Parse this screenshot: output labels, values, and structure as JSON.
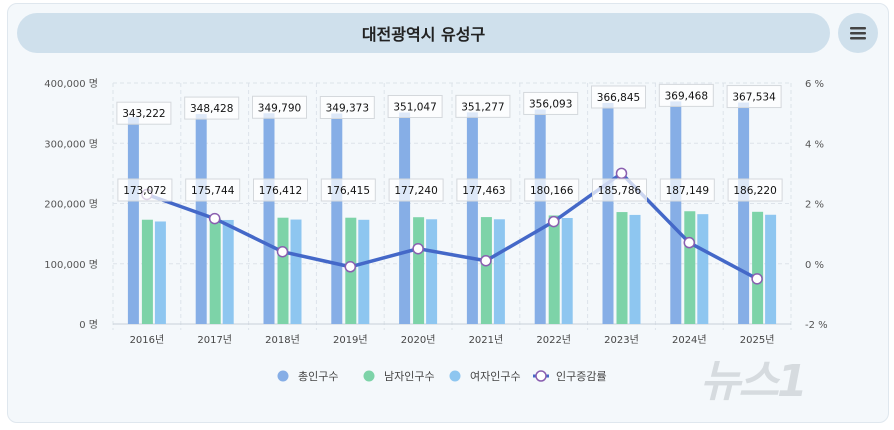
{
  "header": {
    "title": "대전광역시 유성구",
    "menu_icon": "hamburger-icon"
  },
  "watermark": "뉴스1",
  "chart_data": {
    "type": "bar+line",
    "categories": [
      "2016년",
      "2017년",
      "2018년",
      "2019년",
      "2020년",
      "2021년",
      "2022년",
      "2023년",
      "2024년",
      "2025년"
    ],
    "series": [
      {
        "name": "총인구수",
        "type": "bar",
        "axis": "left",
        "color": "#86aee6",
        "values": [
          343222,
          348428,
          349790,
          349373,
          351047,
          351277,
          356093,
          366845,
          369468,
          367534
        ],
        "labels": [
          "343,222",
          "348,428",
          "349,790",
          "349,373",
          "351,047",
          "351,277",
          "356,093",
          "366,845",
          "369,468",
          "367,534"
        ]
      },
      {
        "name": "남자인구수",
        "type": "bar",
        "axis": "left",
        "color": "#7dd3a8",
        "values": [
          173072,
          175744,
          176412,
          176415,
          177240,
          177463,
          180166,
          185786,
          187149,
          186220
        ],
        "labels": [
          "173,072",
          "175,744",
          "176,412",
          "176,415",
          "177,240",
          "177,463",
          "180,166",
          "185,786",
          "187,149",
          "186,220"
        ]
      },
      {
        "name": "여자인구수",
        "type": "bar",
        "axis": "left",
        "color": "#8ec6f0",
        "values": [
          170150,
          172684,
          173378,
          172958,
          173807,
          173814,
          175927,
          181059,
          182319,
          181314
        ]
      },
      {
        "name": "인구증감률",
        "type": "line",
        "axis": "right",
        "color": "#4468c8",
        "marker_color": "#8a5fb0",
        "values": [
          2.3,
          1.5,
          0.4,
          -0.1,
          0.5,
          0.1,
          1.4,
          3.0,
          0.7,
          -0.5
        ]
      }
    ],
    "left_axis": {
      "ylim": [
        0,
        400000
      ],
      "ticks": [
        "0 명",
        "100,000 명",
        "200,000 명",
        "300,000 명",
        "400,000 명"
      ]
    },
    "right_axis": {
      "ylim": [
        -2,
        6
      ],
      "ticks": [
        "-2 %",
        "0 %",
        "2 %",
        "4 %",
        "6 %"
      ]
    },
    "grid": true,
    "legend": "bottom"
  }
}
